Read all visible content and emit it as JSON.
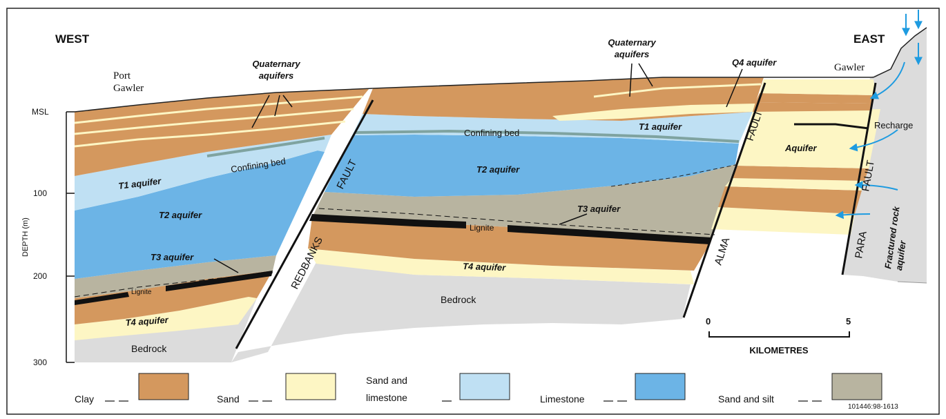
{
  "labels": {
    "west": "WEST",
    "east": "EAST",
    "port_gawler": "Port\nGawler",
    "gawler": "Gawler",
    "quaternary_aquifers": "Quaternary\naquifers",
    "q4_aquifer": "Q4 aquifer",
    "t1_aquifer": "T1 aquifer",
    "t2_aquifer": "T2 aquifer",
    "t3_aquifer": "T3 aquifer",
    "t4_aquifer": "T4 aquifer",
    "confining_bed": "Confining bed",
    "lignite": "Lignite",
    "bedrock": "Bedrock",
    "fault": "FAULT",
    "redbanks": "REDBANKS",
    "alma": "ALMA",
    "para": "PARA",
    "aquifer": "Aquifer",
    "recharge": "Recharge",
    "fractured_rock_aquifer": "Fractured rock\naquifer",
    "figure_id": "101446:98-1613"
  },
  "depth_axis": {
    "title": "DEPTH (m)",
    "ticks": [
      "MSL",
      "100",
      "200",
      "300"
    ]
  },
  "scale_bar": {
    "start": "0",
    "end": "5",
    "unit": "KILOMETRES"
  },
  "legend": [
    {
      "label": "Clay",
      "color": "#d4985e"
    },
    {
      "label": "Sand",
      "color": "#fdf6c4"
    },
    {
      "label": "Sand and\nlimestone",
      "color": "#bfe0f3"
    },
    {
      "label": "Limestone",
      "color": "#6cb4e6"
    },
    {
      "label": "Sand and silt",
      "color": "#b8b4a0"
    }
  ],
  "colors": {
    "clay": "#d4985e",
    "sand": "#fdf6c4",
    "sand_limestone": "#bfe0f3",
    "limestone": "#6cb4e6",
    "sand_silt": "#b8b4a0",
    "bedrock": "#dcdcdc",
    "confining": "#7fa3a0",
    "arrow": "#1e9be0"
  }
}
